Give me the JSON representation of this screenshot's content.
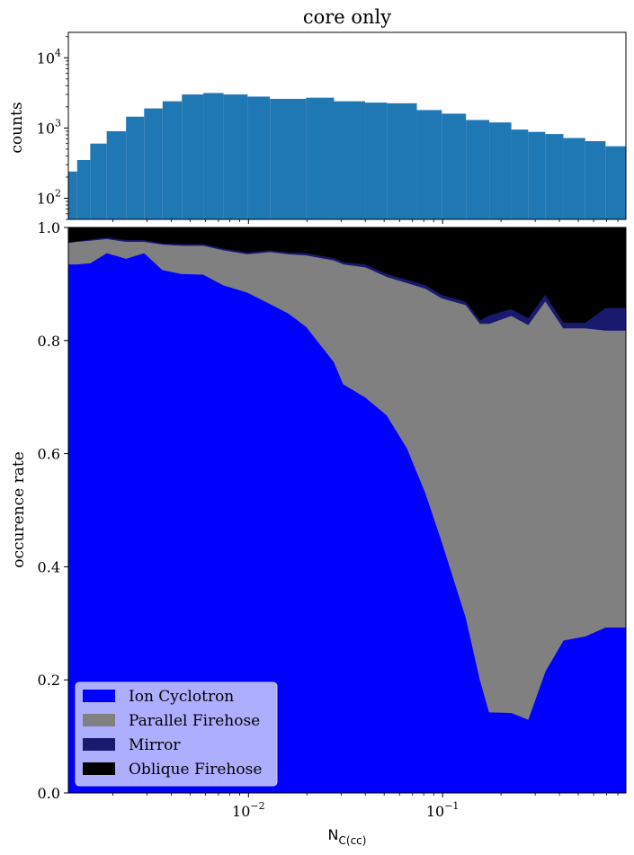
{
  "chart_data": [
    {
      "type": "bar",
      "title": "core only",
      "ylabel": "counts",
      "xscale": "log",
      "yscale": "log",
      "xlim": [
        0.00118,
        0.88
      ],
      "ylim": [
        50,
        23000
      ],
      "yticks": [
        {
          "value": 100,
          "base": "10",
          "exp": "2"
        },
        {
          "value": 1000,
          "base": "10",
          "exp": "3"
        },
        {
          "value": 10000,
          "base": "10",
          "exp": "4"
        }
      ],
      "bar_color": "#1f77b4",
      "bin_edges": [
        0.00118,
        0.00131,
        0.00153,
        0.00186,
        0.00234,
        0.0029,
        0.00361,
        0.00454,
        0.00585,
        0.00744,
        0.0099,
        0.0129,
        0.0198,
        0.0276,
        0.0399,
        0.0516,
        0.0737,
        0.0991,
        0.132,
        0.174,
        0.226,
        0.276,
        0.338,
        0.419,
        0.543,
        0.691,
        0.88
      ],
      "counts": [
        240,
        350,
        600,
        900,
        1450,
        1900,
        2400,
        3000,
        3150,
        3000,
        2800,
        2600,
        2700,
        2400,
        2300,
        2250,
        1800,
        1600,
        1300,
        1200,
        950,
        880,
        820,
        720,
        650,
        550
      ]
    },
    {
      "type": "area",
      "stacked": true,
      "xlabel_main": "N",
      "xlabel_sub": "C(cc)",
      "ylabel": "occurence rate",
      "xscale": "log",
      "xlim": [
        0.00118,
        0.88
      ],
      "ylim": [
        0.0,
        1.0
      ],
      "yticks": [
        "0.0",
        "0.2",
        "0.4",
        "0.6",
        "0.8",
        "1.0"
      ],
      "xticks": [
        {
          "value": 0.01,
          "base": "10",
          "exp": "−2"
        },
        {
          "value": 0.1,
          "base": "10",
          "exp": "−1"
        }
      ],
      "legend_position": "lower-left",
      "x": [
        0.00118,
        0.00131,
        0.00153,
        0.00186,
        0.00234,
        0.0029,
        0.00361,
        0.00454,
        0.00585,
        0.00744,
        0.0099,
        0.0129,
        0.0161,
        0.0198,
        0.0276,
        0.0308,
        0.0399,
        0.0516,
        0.0656,
        0.0818,
        0.0991,
        0.132,
        0.156,
        0.174,
        0.226,
        0.276,
        0.338,
        0.419,
        0.543,
        0.691,
        0.88
      ],
      "series": [
        {
          "name": "Ion Cyclotron",
          "color": "#0000ff",
          "values": [
            0.935,
            0.935,
            0.937,
            0.955,
            0.945,
            0.955,
            0.925,
            0.918,
            0.917,
            0.898,
            0.885,
            0.865,
            0.848,
            0.825,
            0.762,
            0.723,
            0.7,
            0.668,
            0.61,
            0.53,
            0.445,
            0.31,
            0.2,
            0.143,
            0.142,
            0.13,
            0.215,
            0.27,
            0.277,
            0.293,
            0.293
          ]
        },
        {
          "name": "Parallel Firehose",
          "color": "#808080",
          "values": [
            0.038,
            0.04,
            0.04,
            0.025,
            0.03,
            0.02,
            0.045,
            0.05,
            0.051,
            0.062,
            0.068,
            0.092,
            0.105,
            0.126,
            0.18,
            0.212,
            0.23,
            0.245,
            0.292,
            0.362,
            0.43,
            0.553,
            0.63,
            0.687,
            0.702,
            0.698,
            0.655,
            0.552,
            0.545,
            0.525,
            0.525
          ]
        },
        {
          "name": "Mirror",
          "color": "#191970",
          "values": [
            0.001,
            0.001,
            0.002,
            0.003,
            0.003,
            0.003,
            0.002,
            0.003,
            0.003,
            0.003,
            0.003,
            0.003,
            0.003,
            0.004,
            0.004,
            0.004,
            0.005,
            0.005,
            0.006,
            0.006,
            0.006,
            0.006,
            0.006,
            0.015,
            0.012,
            0.012,
            0.012,
            0.01,
            0.01,
            0.04,
            0.04
          ]
        },
        {
          "name": "Oblique Firehose",
          "color": "#000000",
          "values": [
            0.026,
            0.024,
            0.021,
            0.017,
            0.022,
            0.022,
            0.028,
            0.029,
            0.029,
            0.037,
            0.044,
            0.04,
            0.044,
            0.045,
            0.054,
            0.061,
            0.065,
            0.082,
            0.092,
            0.102,
            0.119,
            0.131,
            0.164,
            0.155,
            0.144,
            0.16,
            0.118,
            0.168,
            0.168,
            0.142,
            0.142
          ]
        }
      ]
    }
  ]
}
